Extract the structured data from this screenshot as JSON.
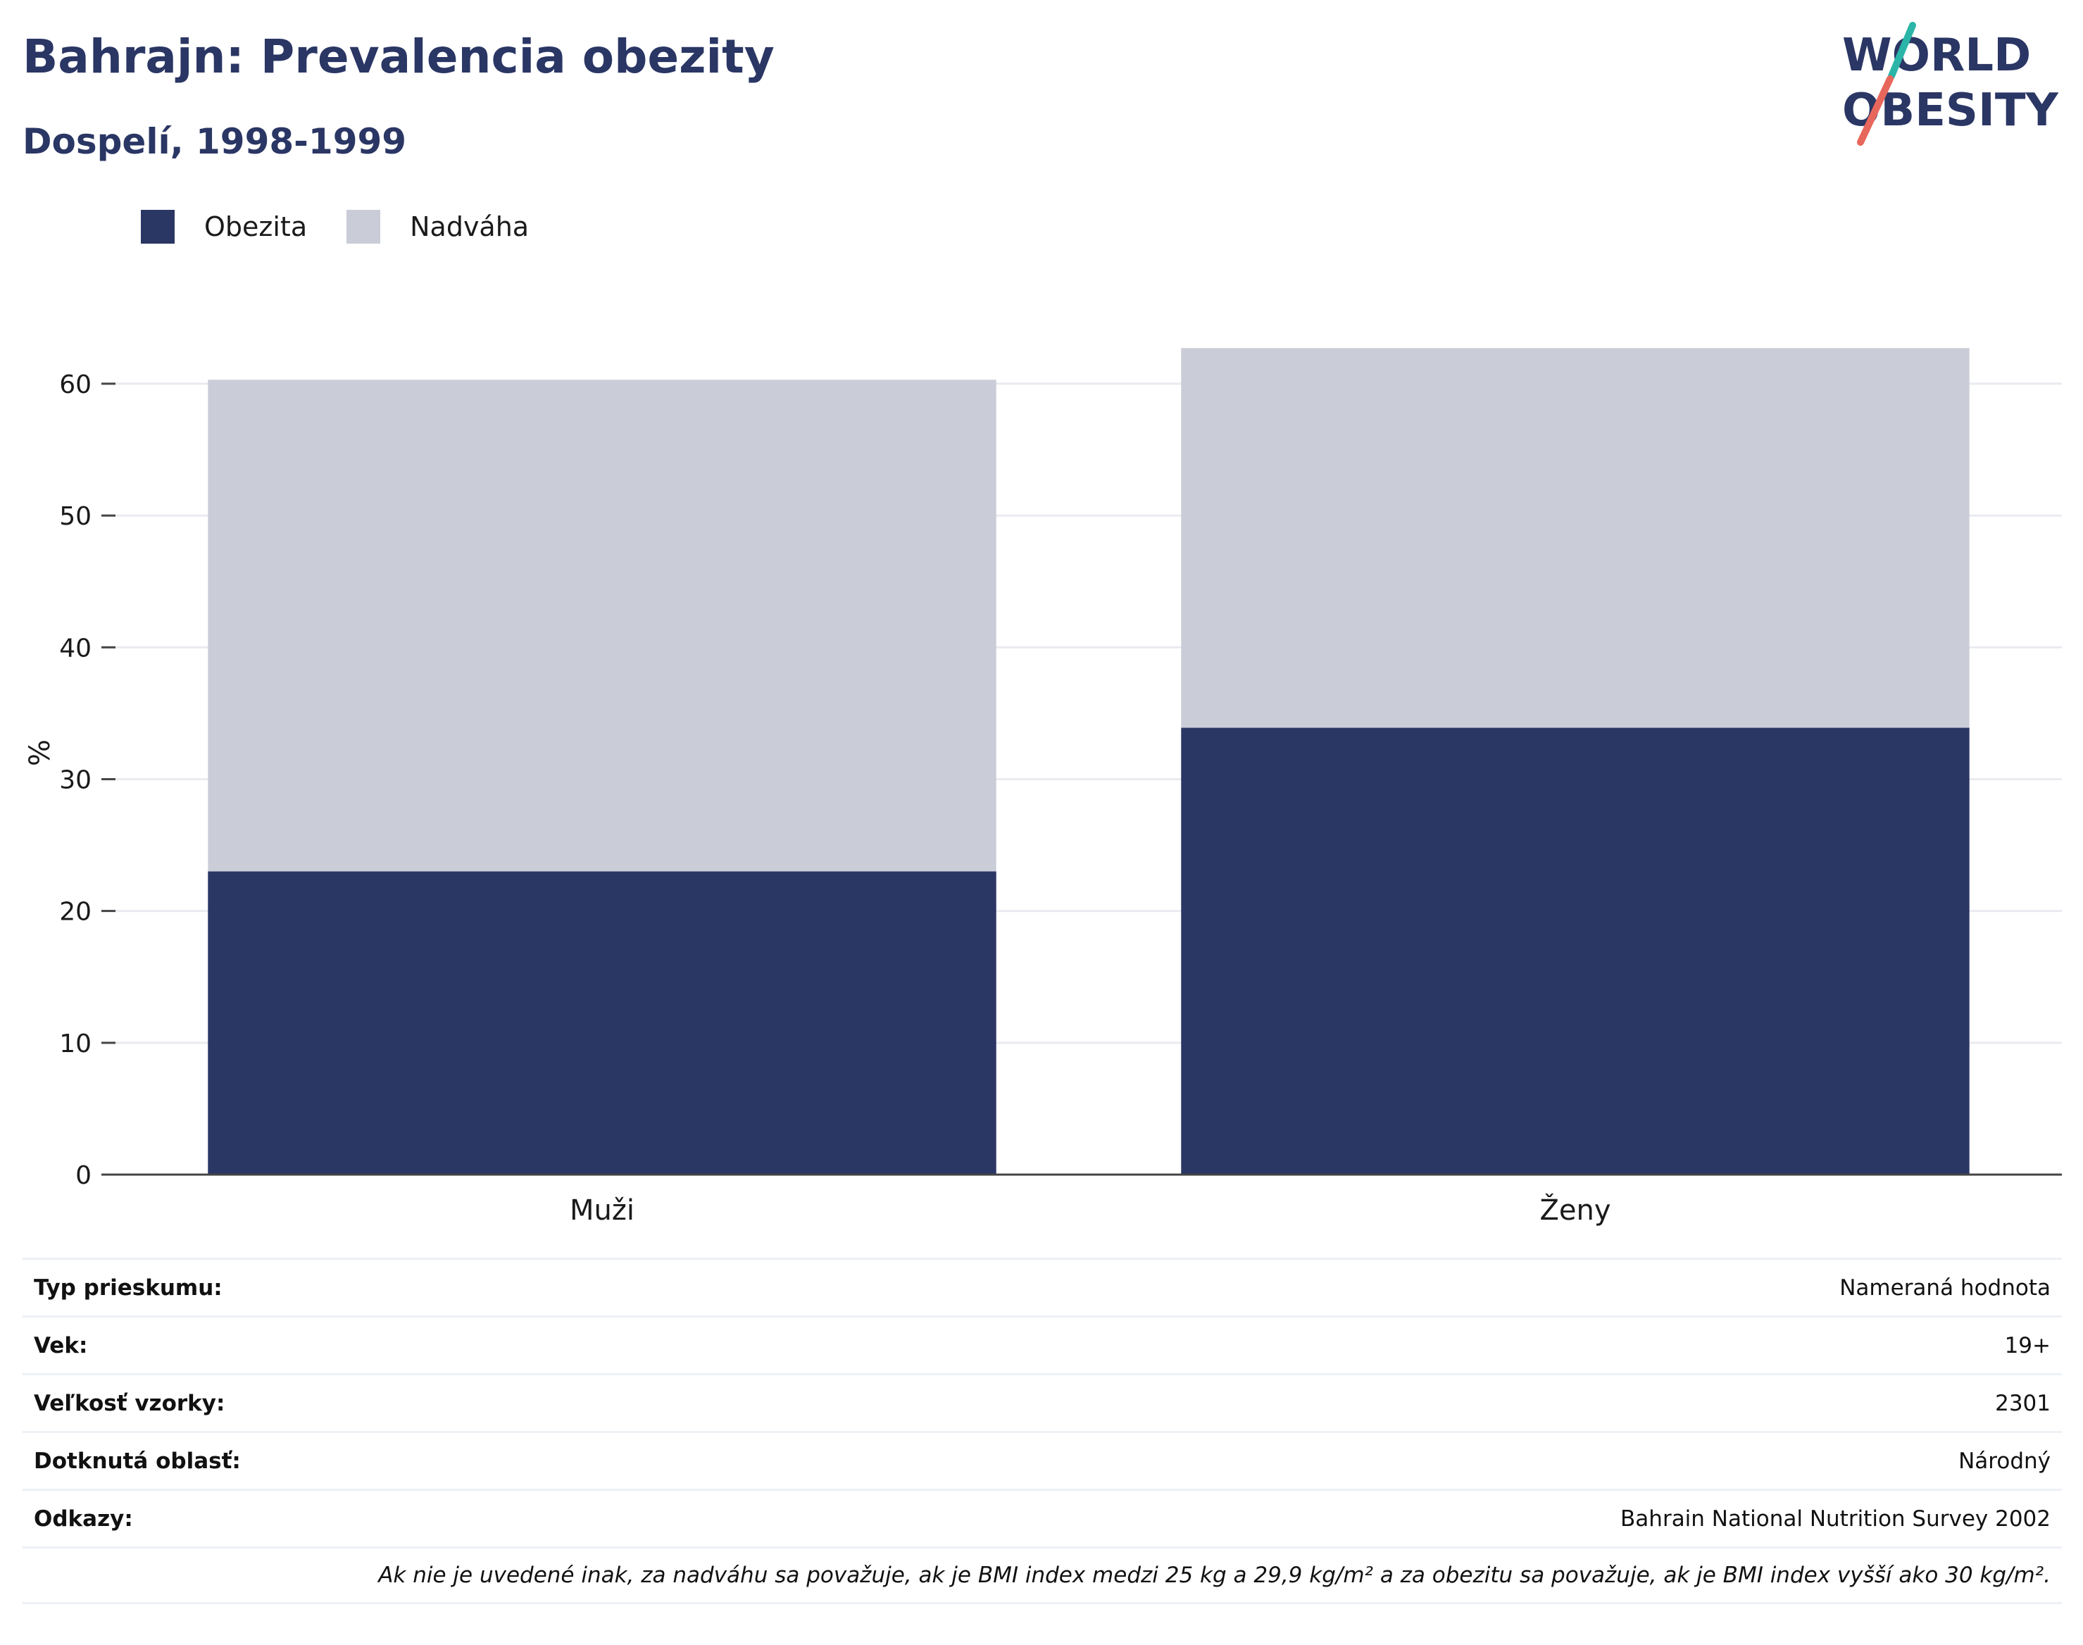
{
  "header": {
    "title": "Bahrajn: Prevalencia obezity",
    "subtitle": "Dospelí, 1998-1999"
  },
  "logo": {
    "line1": "WORLD",
    "line2": "OBESITY",
    "colors": {
      "text": "#2a3664",
      "slash_top": "#2bb5a8",
      "slash_bottom": "#e8675c"
    }
  },
  "colors": {
    "obesity": "#2a3664",
    "overweight": "#cacdd8",
    "grid": "#e9ebf0",
    "axis": "#444444"
  },
  "chart_data": {
    "type": "bar",
    "stacked": true,
    "categories": [
      "Muži",
      "Ženy"
    ],
    "series": [
      {
        "name": "Obezita",
        "values": [
          23.0,
          33.9
        ]
      },
      {
        "name": "Nadváha",
        "values": [
          37.3,
          28.8
        ]
      }
    ],
    "ylabel": "%",
    "ylim": [
      0,
      65
    ],
    "yticks": [
      0,
      10,
      20,
      30,
      40,
      50,
      60
    ],
    "grid": true,
    "legend_position": "top-left"
  },
  "info": {
    "rows": [
      {
        "label": "Typ prieskumu:",
        "value": "Nameraná hodnota"
      },
      {
        "label": "Vek:",
        "value": "19+"
      },
      {
        "label": "Veľkosť vzorky:",
        "value": "2301"
      },
      {
        "label": "Dotknutá oblasť:",
        "value": "Národný"
      },
      {
        "label": "Odkazy:",
        "value": "Bahrain National Nutrition Survey 2002"
      }
    ],
    "note": "Ak nie je uvedené inak, za nadváhu sa považuje, ak je BMI index medzi 25 kg a 29,9 kg/m² a za obezitu sa považuje, ak je BMI index vyšší ako 30 kg/m²."
  }
}
